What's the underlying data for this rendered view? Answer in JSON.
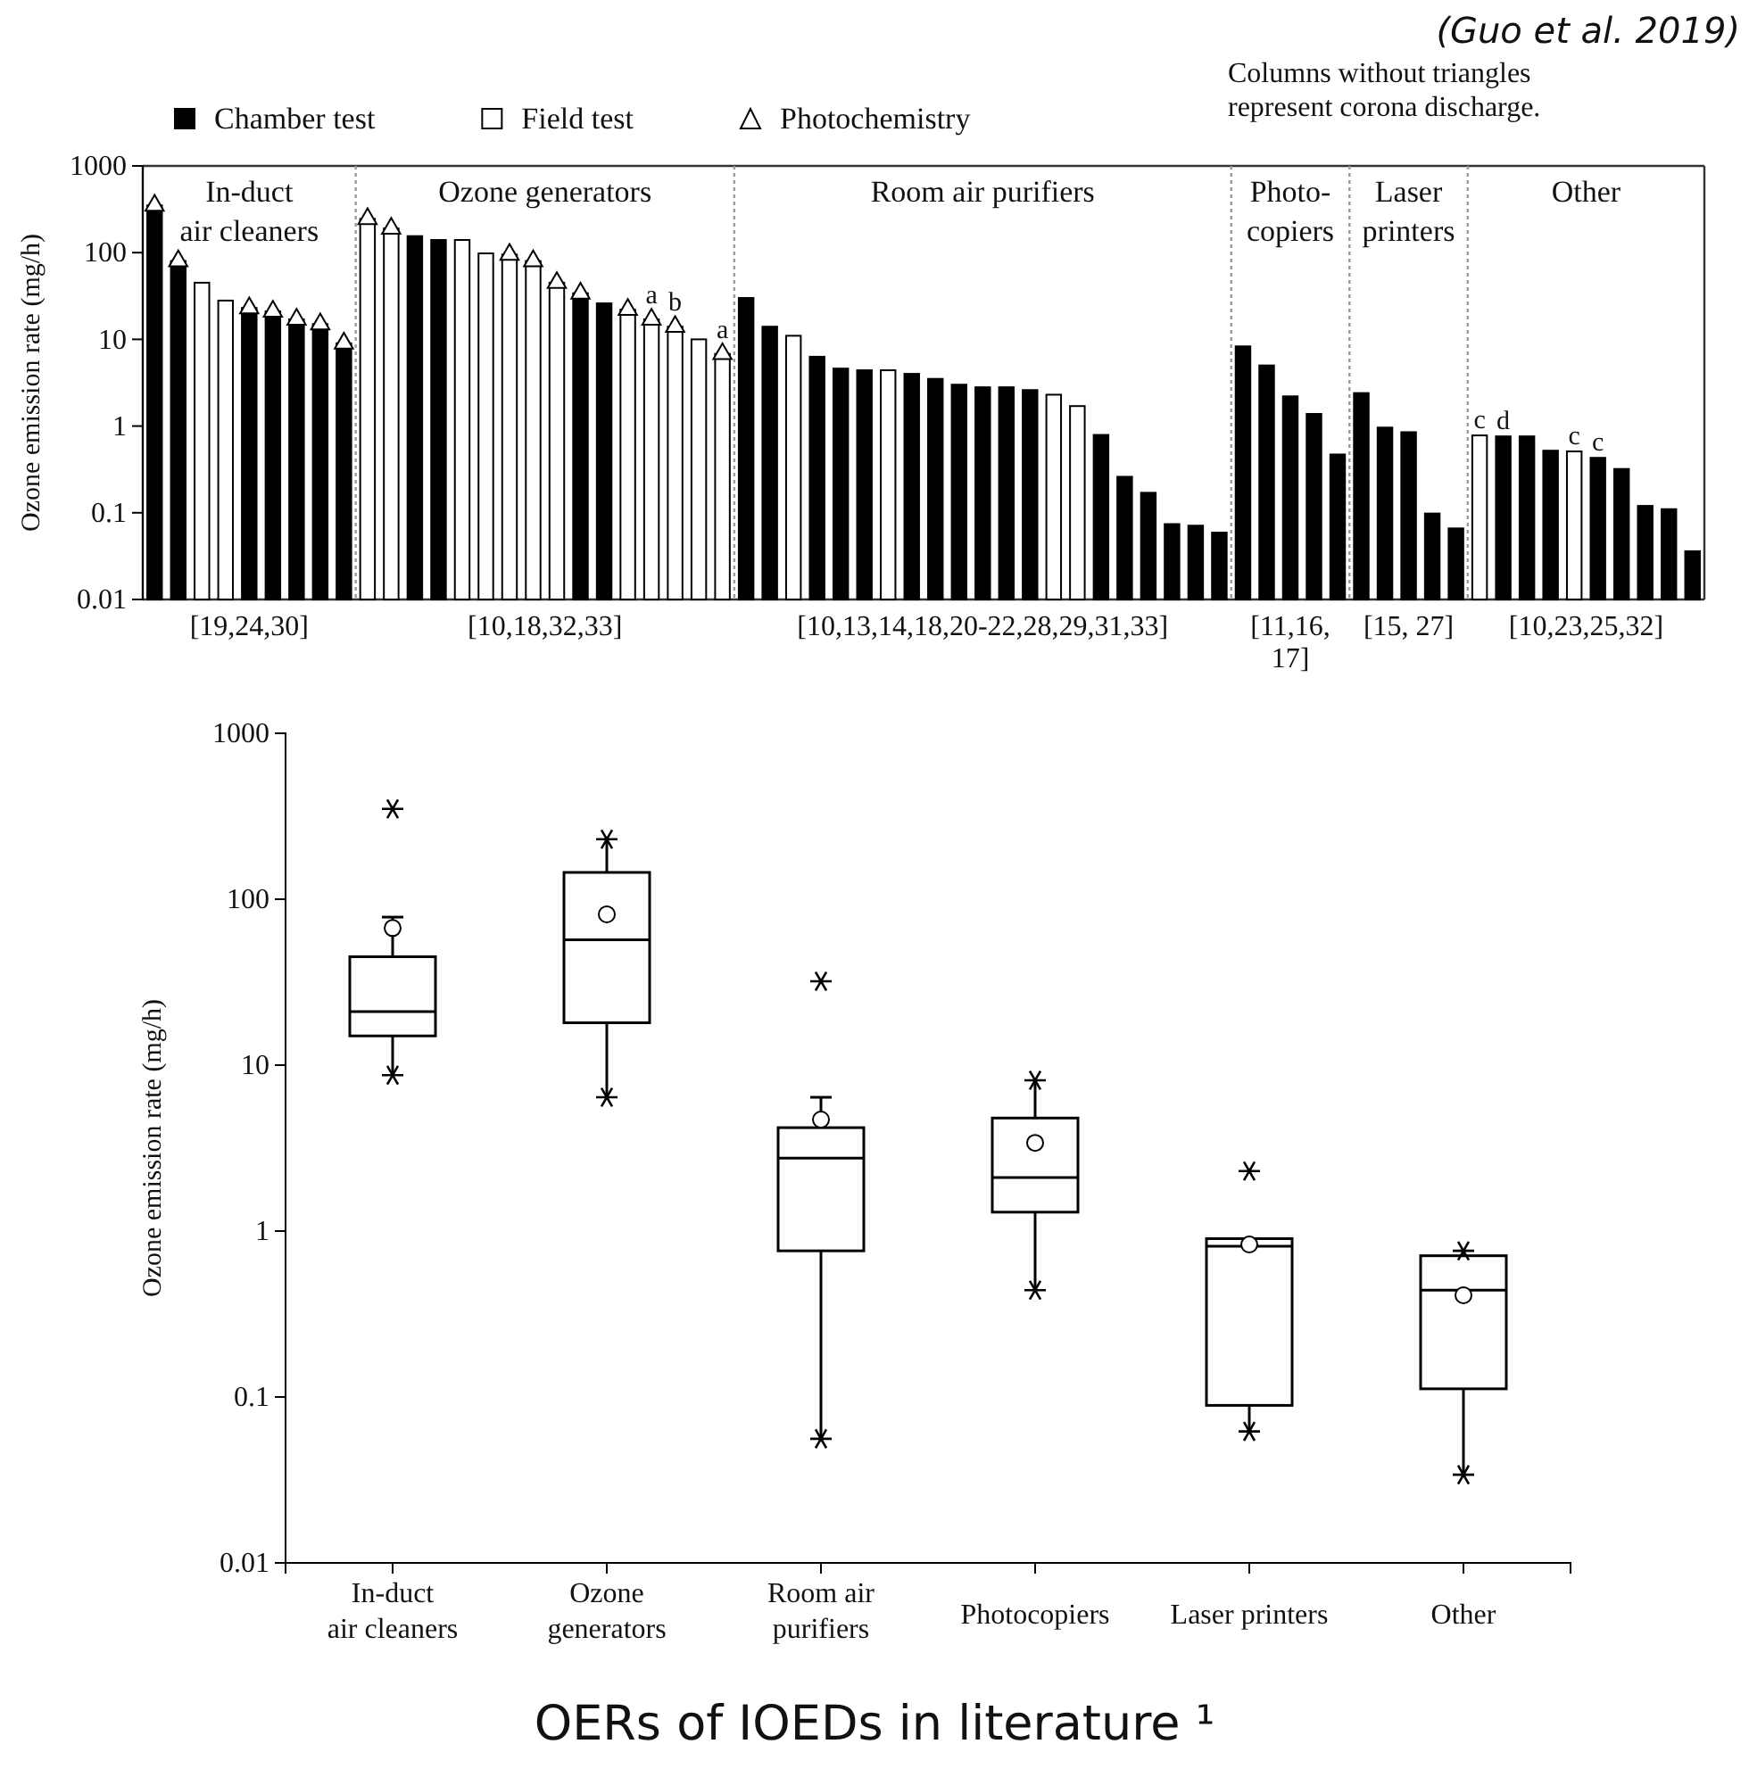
{
  "chart_data": [
    {
      "type": "bar",
      "ylabel": "Ozone emission rate (mg/h)",
      "log": "y",
      "legend": "top",
      "ylim": [
        0.01,
        1000
      ],
      "yticks": [
        0.01,
        0.1,
        1,
        10,
        100,
        1000
      ],
      "categories": [
        null,
        null,
        null,
        null,
        null,
        null,
        null,
        null,
        null,
        null,
        null,
        null,
        null,
        null,
        null,
        null,
        null,
        null,
        null,
        null,
        null,
        null,
        null,
        null,
        null,
        null,
        null,
        null,
        null,
        null,
        null,
        null,
        null,
        null,
        null,
        null,
        null,
        null,
        null,
        null,
        null,
        null,
        null,
        null,
        null,
        null,
        null,
        null,
        null,
        null,
        null,
        null,
        null,
        null,
        null,
        null,
        null,
        null,
        null,
        null,
        null,
        null,
        null,
        null,
        null,
        null
      ],
      "series": [
        {
          "name": "Chamber test",
          "type": "bar",
          "color": "#000000",
          "values": [
            350,
            80,
            null,
            null,
            23,
            21,
            17,
            15,
            9,
            null,
            null,
            155,
            140,
            null,
            null,
            null,
            null,
            null,
            34,
            26,
            null,
            null,
            null,
            null,
            null,
            30,
            14,
            null,
            6.3,
            4.6,
            4.4,
            null,
            4.0,
            3.5,
            3.0,
            2.8,
            2.8,
            2.6,
            null,
            null,
            0.79,
            0.26,
            0.17,
            0.074,
            0.071,
            0.059,
            8.3,
            5.0,
            2.2,
            1.38,
            0.47,
            2.4,
            0.96,
            0.85,
            0.098,
            0.066,
            null,
            0.76,
            0.76,
            0.52,
            null,
            0.43,
            0.32,
            0.12,
            0.11,
            0.036
          ],
          "value_labels": [
            null,
            null,
            null,
            null,
            null,
            null,
            null,
            null,
            null,
            null,
            null,
            null,
            null,
            null,
            null,
            null,
            null,
            null,
            null,
            null,
            null,
            null,
            null,
            null,
            null,
            null,
            null,
            null,
            null,
            null,
            null,
            null,
            null,
            null,
            null,
            null,
            null,
            null,
            null,
            null,
            null,
            null,
            null,
            null,
            null,
            null,
            null,
            null,
            null,
            null,
            null,
            null,
            null,
            null,
            null,
            null,
            null,
            "d",
            null,
            null,
            null,
            "c",
            null,
            null,
            null,
            null
          ]
        },
        {
          "name": "Field test",
          "type": "bar",
          "color": "#ffffff",
          "values": [
            null,
            null,
            45,
            28,
            null,
            null,
            null,
            null,
            null,
            245,
            190,
            null,
            null,
            140,
            98,
            95,
            80,
            45,
            null,
            null,
            22,
            17,
            14,
            10,
            6.8,
            null,
            null,
            11,
            null,
            null,
            null,
            4.4,
            null,
            null,
            null,
            null,
            null,
            null,
            2.3,
            1.7,
            null,
            null,
            null,
            null,
            null,
            null,
            null,
            null,
            null,
            null,
            null,
            null,
            null,
            null,
            null,
            null,
            0.78,
            null,
            null,
            null,
            0.51,
            null,
            null,
            null,
            null,
            null
          ],
          "value_labels": [
            null,
            null,
            null,
            null,
            null,
            null,
            null,
            null,
            null,
            null,
            null,
            null,
            null,
            null,
            null,
            null,
            null,
            null,
            null,
            null,
            null,
            null,
            null,
            null,
            null,
            null,
            null,
            null,
            null,
            null,
            null,
            null,
            null,
            null,
            null,
            null,
            null,
            null,
            null,
            null,
            null,
            null,
            null,
            null,
            null,
            null,
            null,
            null,
            null,
            null,
            null,
            null,
            null,
            null,
            null,
            null,
            "c",
            null,
            null,
            null,
            "c",
            null,
            null,
            null,
            null,
            null
          ]
        },
        {
          "name": "Photochemistry",
          "type": "scatter",
          "marker": "triangle",
          "color": "#ffffff",
          "values": [
            350,
            80,
            null,
            null,
            23,
            21,
            17,
            15,
            9,
            245,
            190,
            null,
            null,
            null,
            null,
            95,
            80,
            45,
            34,
            null,
            22,
            17,
            14,
            null,
            6.8,
            null,
            null,
            null,
            null,
            null,
            null,
            null,
            null,
            null,
            null,
            null,
            null,
            null,
            null,
            null,
            null,
            null,
            null,
            null,
            null,
            null,
            null,
            null,
            null,
            null,
            null,
            null,
            null,
            null,
            null,
            null,
            null,
            null,
            null,
            null,
            null,
            null,
            null,
            null,
            null,
            null
          ],
          "value_labels": [
            null,
            null,
            null,
            null,
            null,
            null,
            null,
            null,
            null,
            null,
            null,
            null,
            null,
            null,
            null,
            null,
            null,
            null,
            null,
            null,
            null,
            "a",
            "b",
            null,
            "a",
            null,
            null,
            null,
            null,
            null,
            null,
            null,
            null,
            null,
            null,
            null,
            null,
            null,
            null,
            null,
            null,
            null,
            null,
            null,
            null,
            null,
            null,
            null,
            null,
            null,
            null,
            null,
            null,
            null,
            null,
            null,
            null,
            null,
            null,
            null,
            null,
            null,
            null,
            null,
            null,
            null
          ]
        }
      ],
      "annotations": [
        "(Guo et al. 2019)",
        "Columns without triangles\nrepresent corona discharge.",
        "In-duct\nair cleaners",
        "Ozone generators",
        "Room air purifiers",
        "Photo-\ncopiers",
        "Laser\nprinters",
        "Other",
        "[19,24,30]",
        "[10,18,32,33]",
        "[10,13,14,18,20-22,28,29,31,33]",
        "[11,16,\n17]",
        "[15, 27]",
        "[10,23,25,32]"
      ]
    },
    {
      "type": "box",
      "ylabel": "Ozone emission rate (mg/h)",
      "log": "y",
      "ylim": [
        0.01,
        1000
      ],
      "yticks": [
        0.01,
        0.1,
        1,
        10,
        100,
        1000
      ],
      "categories": [
        "In-duct\nair cleaners",
        "Ozone\ngenerators",
        "Room air\npurifiers",
        "Photocopiers",
        "Laser printers",
        "Other"
      ],
      "boxes": [
        {
          "low": 8.7,
          "q1": 15,
          "median": 21,
          "q3": 45,
          "high": 78,
          "mean": 67,
          "outliers": [
            350
          ]
        },
        {
          "low": 6.4,
          "q1": 18,
          "median": 57,
          "q3": 145,
          "high": 230,
          "mean": 81
        },
        {
          "low": 0.056,
          "q1": 0.76,
          "median": 2.75,
          "q3": 4.2,
          "high": 6.4,
          "mean": 4.7,
          "outliers": [
            32
          ]
        },
        {
          "low": 0.44,
          "q1": 1.3,
          "median": 2.1,
          "q3": 4.8,
          "high": 8.1,
          "mean": 3.4
        },
        {
          "low": 0.062,
          "q1": 0.089,
          "median": 0.81,
          "q3": 0.9,
          "high": 0.9,
          "mean": 0.83,
          "outliers": [
            2.3
          ]
        },
        {
          "low": 0.034,
          "q1": 0.112,
          "median": 0.44,
          "q3": 0.71,
          "high": 0.76,
          "mean": 0.41
        }
      ],
      "annotations": [
        "OERs of IOEDs in literature ¹"
      ]
    }
  ]
}
